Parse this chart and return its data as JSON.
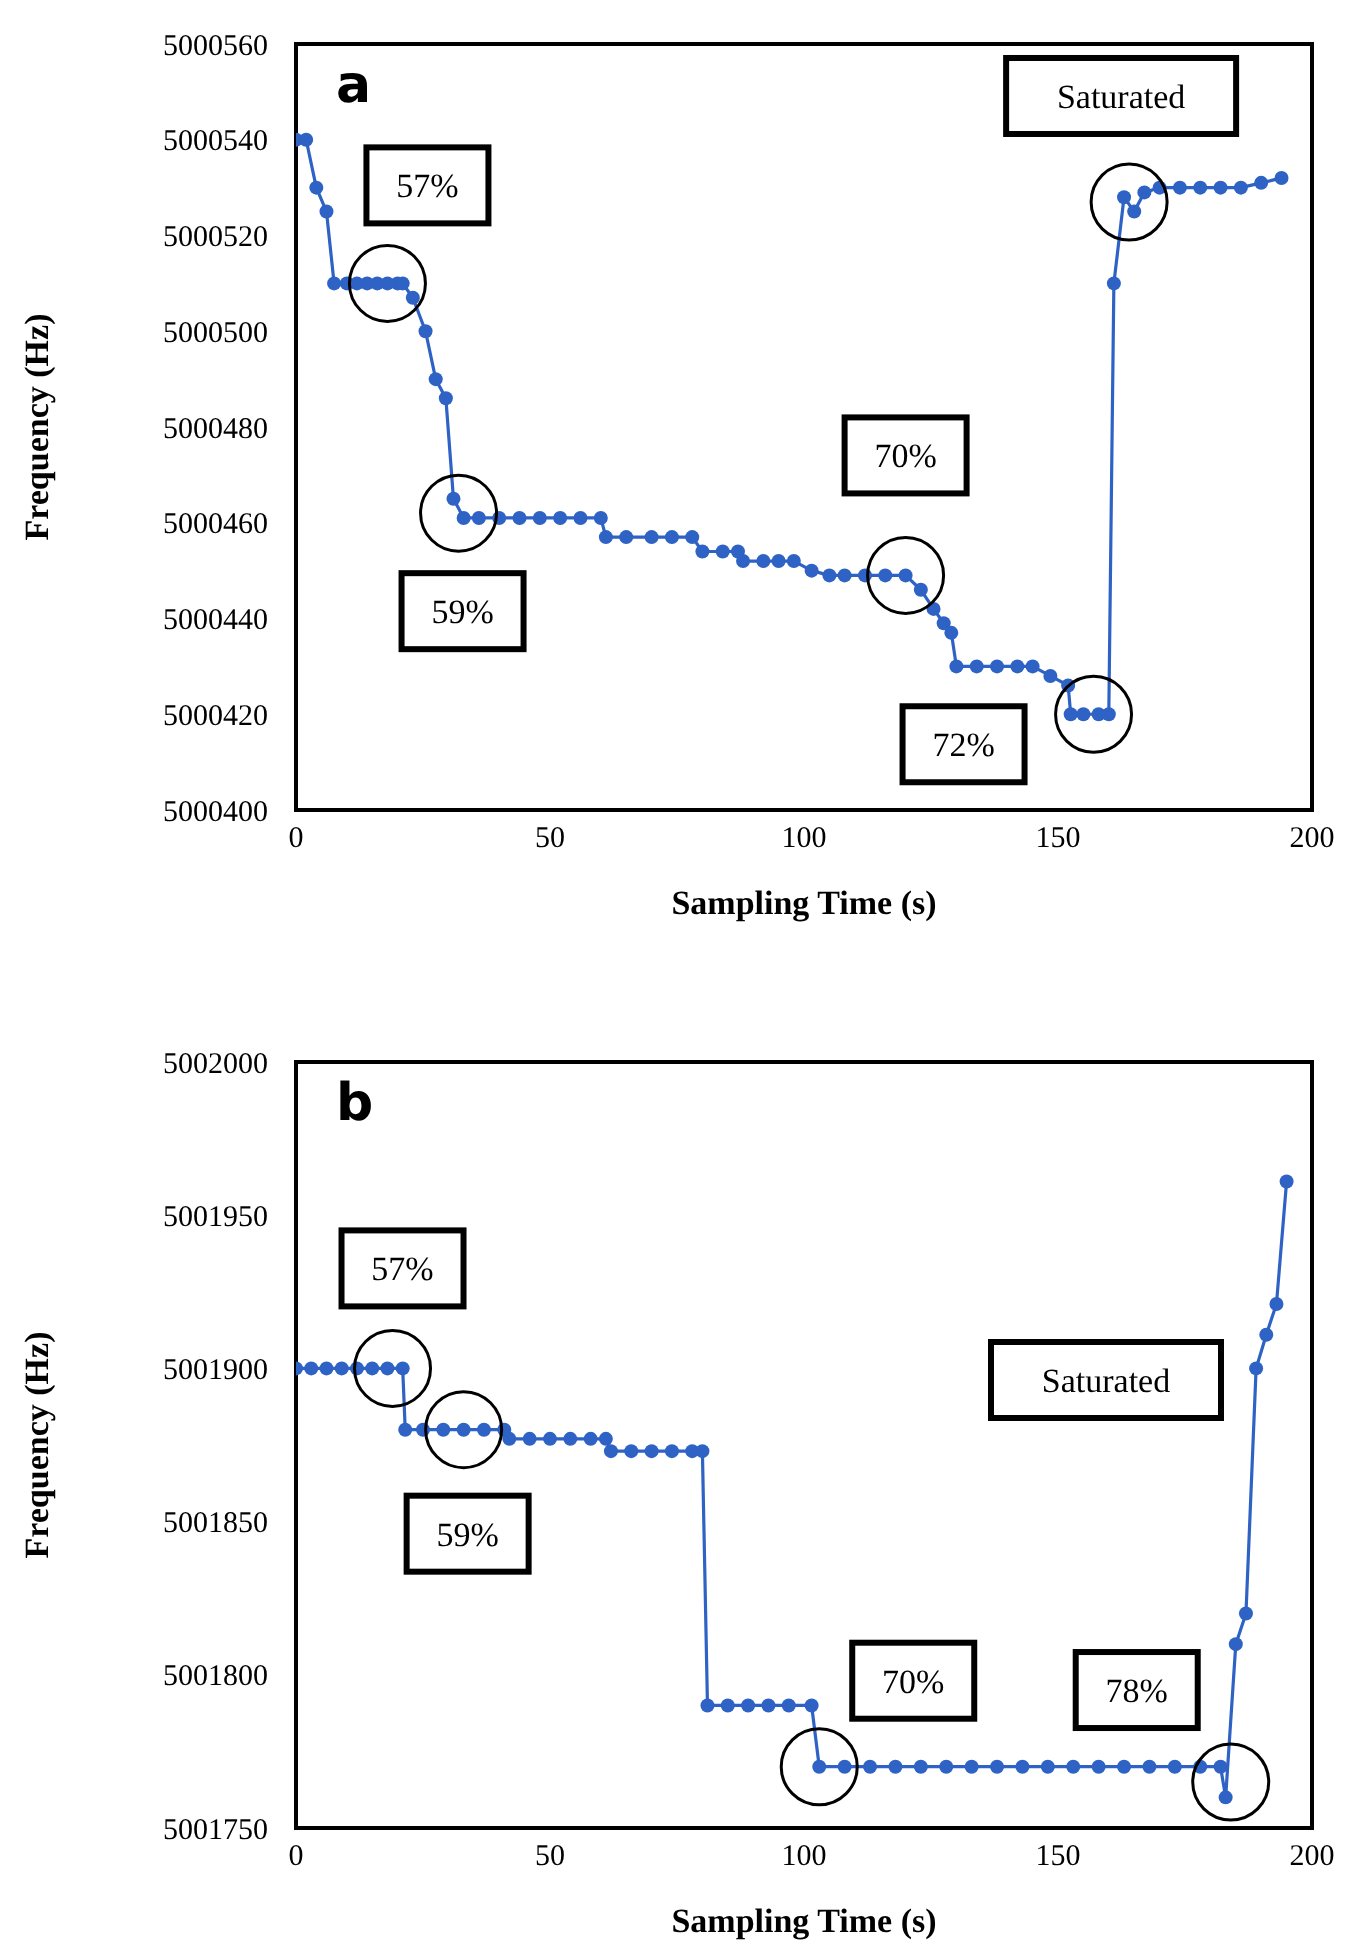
{
  "chart_data": [
    {
      "type": "line",
      "title": "a",
      "xlabel": "Sampling Time (s)",
      "ylabel": "Frequency (Hz)",
      "xlim": [
        0,
        200
      ],
      "xticks": [
        0,
        50,
        100,
        150,
        200
      ],
      "ylim": [
        5000400,
        5000560
      ],
      "yticks": [
        5000400,
        5000420,
        5000440,
        5000460,
        5000480,
        5000500,
        5000520,
        5000540,
        5000560
      ],
      "grid": false,
      "marker": "circle",
      "line_style": "solid",
      "series": [
        {
          "color": "#2e62c4",
          "x": [
            0,
            2,
            4,
            6,
            7.5,
            10,
            12,
            14,
            16,
            18,
            20,
            21,
            23,
            25.5,
            27.5,
            29.5,
            31,
            33,
            36,
            40,
            44,
            48,
            52,
            56,
            60,
            61,
            65,
            70,
            74,
            78,
            80,
            84,
            87,
            88,
            92,
            95,
            98,
            101.5,
            105,
            108,
            112,
            116,
            120,
            123,
            125.5,
            127.5,
            129,
            130,
            134,
            138,
            142,
            145,
            148.5,
            152,
            152.5,
            155,
            158,
            160,
            161,
            163,
            165,
            167,
            170,
            174,
            178,
            182,
            186,
            190,
            194
          ],
          "values": [
            5000540,
            5000540,
            5000530,
            5000525,
            5000510,
            5000510,
            5000510,
            5000510,
            5000510,
            5000510,
            5000510,
            5000510,
            5000507,
            5000500,
            5000490,
            5000486,
            5000465,
            5000461,
            5000461,
            5000461,
            5000461,
            5000461,
            5000461,
            5000461,
            5000461,
            5000457,
            5000457,
            5000457,
            5000457,
            5000457,
            5000454,
            5000454,
            5000454,
            5000452,
            5000452,
            5000452,
            5000452,
            5000450,
            5000449,
            5000449,
            5000449,
            5000449,
            5000449,
            5000446,
            5000442,
            5000439,
            5000437,
            5000430,
            5000430,
            5000430,
            5000430,
            5000430,
            5000428,
            5000426,
            5000420,
            5000420,
            5000420,
            5000420,
            5000510,
            5000528,
            5000525,
            5000529,
            5000530,
            5000530,
            5000530,
            5000530,
            5000530,
            5000531,
            5000532
          ]
        }
      ],
      "annotations": [
        {
          "text": "57%",
          "x": 18,
          "y": 5000510
        },
        {
          "text": "59%",
          "x": 32,
          "y": 5000462
        },
        {
          "text": "70%",
          "x": 120,
          "y": 5000449
        },
        {
          "text": "72%",
          "x": 157,
          "y": 5000420
        },
        {
          "text": "Saturated",
          "x": 164,
          "y": 5000527
        }
      ]
    },
    {
      "type": "line",
      "title": "b",
      "xlabel": "Sampling Time (s)",
      "ylabel": "Frequency (Hz)",
      "xlim": [
        0,
        200
      ],
      "xticks": [
        0,
        50,
        100,
        150,
        200
      ],
      "ylim": [
        5001750,
        5002000
      ],
      "yticks": [
        5001750,
        5001800,
        5001850,
        5001900,
        5001950,
        5002000
      ],
      "grid": false,
      "marker": "circle",
      "line_style": "solid",
      "series": [
        {
          "color": "#2e62c4",
          "x": [
            0,
            3,
            6,
            9,
            12,
            15,
            18,
            21,
            21.5,
            25,
            29,
            33,
            37,
            41,
            42,
            46,
            50,
            54,
            58,
            61,
            62,
            66,
            70,
            74,
            78,
            80,
            81,
            85,
            89,
            93,
            97,
            101.5,
            103,
            108,
            113,
            118,
            123,
            128,
            133,
            138,
            143,
            148,
            153,
            158,
            163,
            168,
            173,
            178,
            182,
            183,
            185,
            187,
            189,
            191,
            193,
            195
          ],
          "values": [
            5001900,
            5001900,
            5001900,
            5001900,
            5001900,
            5001900,
            5001900,
            5001900,
            5001880,
            5001880,
            5001880,
            5001880,
            5001880,
            5001880,
            5001877,
            5001877,
            5001877,
            5001877,
            5001877,
            5001877,
            5001873,
            5001873,
            5001873,
            5001873,
            5001873,
            5001873,
            5001790,
            5001790,
            5001790,
            5001790,
            5001790,
            5001790,
            5001770,
            5001770,
            5001770,
            5001770,
            5001770,
            5001770,
            5001770,
            5001770,
            5001770,
            5001770,
            5001770,
            5001770,
            5001770,
            5001770,
            5001770,
            5001770,
            5001770,
            5001760,
            5001810,
            5001820,
            5001900,
            5001911,
            5001921,
            5001961
          ]
        }
      ],
      "annotations": [
        {
          "text": "57%",
          "x": 19,
          "y": 5001900
        },
        {
          "text": "59%",
          "x": 33,
          "y": 5001880
        },
        {
          "text": "70%",
          "x": 103,
          "y": 5001770
        },
        {
          "text": "78%",
          "x": 184,
          "y": 5001765
        },
        "Saturated"
      ]
    }
  ]
}
